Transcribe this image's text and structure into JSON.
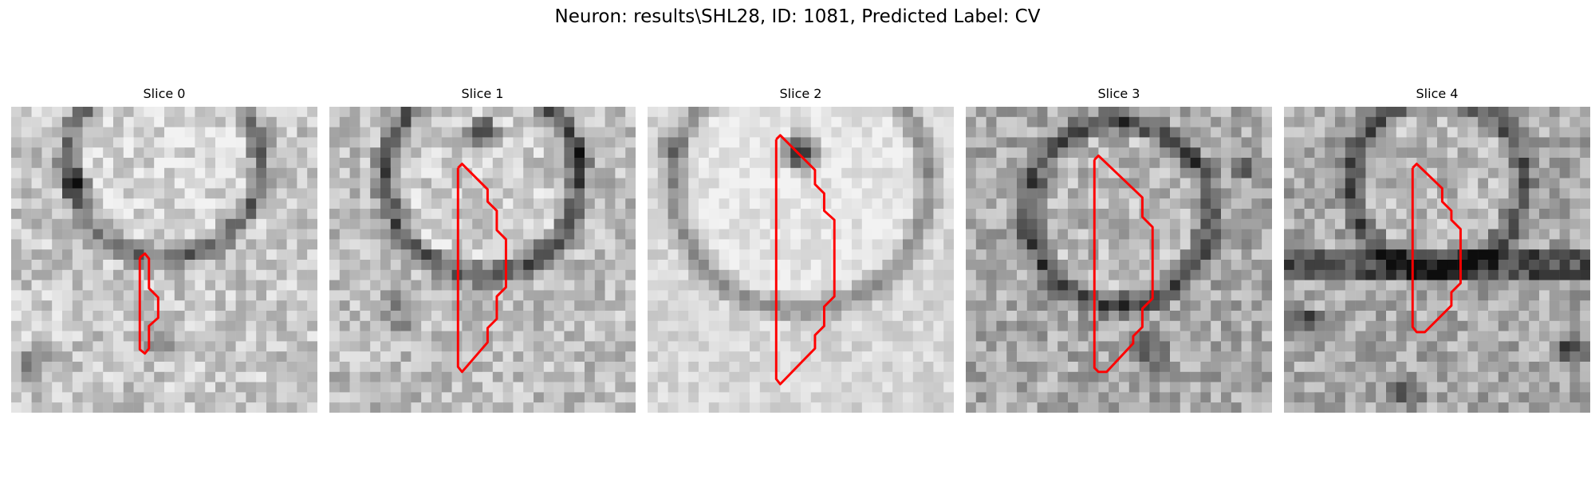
{
  "figure": {
    "title": "Neuron: results\\SHL28, ID: 1081, Predicted Label: CV"
  },
  "colors": {
    "background": "#ffffff",
    "contour": "#ff0000",
    "image_light": "#e8e8e8",
    "image_dark": "#151515"
  },
  "panels": [
    {
      "title": "Slice 0"
    },
    {
      "title": "Slice 1"
    },
    {
      "title": "Slice 2"
    },
    {
      "title": "Slice 3"
    },
    {
      "title": "Slice 4"
    }
  ]
}
